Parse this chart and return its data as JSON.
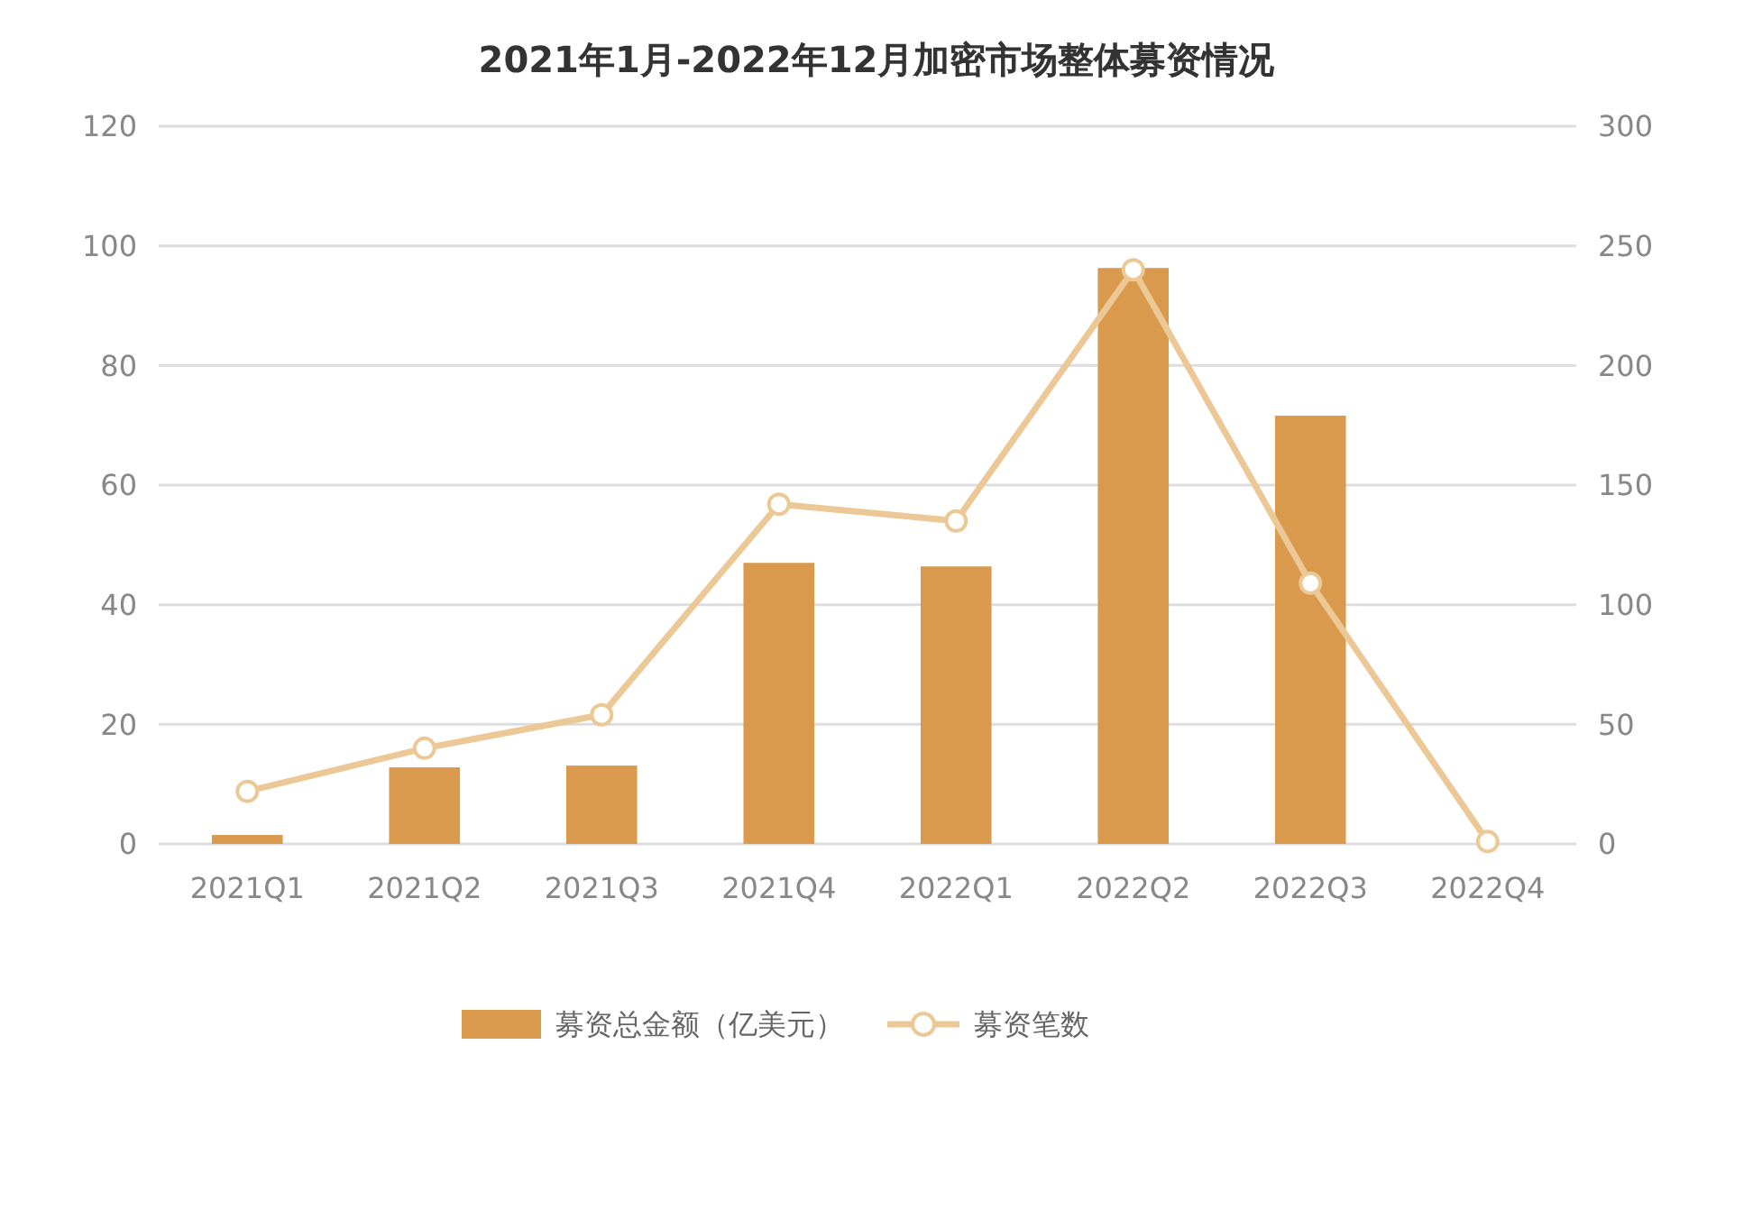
{
  "chart_data": {
    "type": "bar",
    "title": "2021年1月-2022年12月加密市场整体募资情况",
    "categories": [
      "2021Q1",
      "2021Q2",
      "2021Q3",
      "2021Q4",
      "2022Q1",
      "2022Q2",
      "2022Q3",
      "2022Q4"
    ],
    "series": [
      {
        "name": "募资总金额（亿美元）",
        "color": "#d99a4e",
        "values": [
          1.5,
          12.8,
          13.1,
          47,
          46.4,
          96.3,
          71.6,
          0
        ]
      },
      {
        "name": "募资笔数",
        "type": "line",
        "axis": "y2",
        "color": "#ecc896",
        "marker": "circle",
        "values": [
          22,
          40,
          54,
          142,
          135,
          240,
          109,
          1
        ]
      }
    ],
    "ylim": [
      0,
      120
    ],
    "yticks": [
      0,
      20,
      40,
      60,
      80,
      100,
      120
    ],
    "y2lim": [
      0,
      300
    ],
    "y2ticks": [
      0,
      50,
      100,
      150,
      200,
      250,
      300
    ],
    "grid": "y",
    "legend": "bottom"
  }
}
